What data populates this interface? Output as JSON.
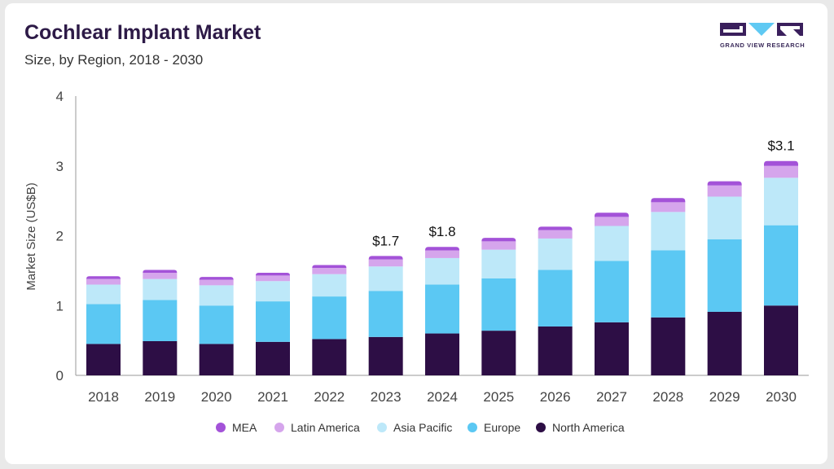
{
  "header": {
    "title": "Cochlear Implant Market",
    "subtitle": "Size, by Region, 2018 - 2030"
  },
  "logo": {
    "text": "GRAND VIEW RESEARCH",
    "color": "#3a1f5c",
    "accent": "#5fc9f3"
  },
  "chart_data": {
    "type": "bar",
    "stacked": true,
    "title": "Cochlear Implant Market",
    "subtitle": "Size, by Region, 2018 - 2030",
    "xlabel": "",
    "ylabel": "Market Size (US$B)",
    "ylim": [
      0,
      4
    ],
    "yticks": [
      "0",
      "1",
      "2",
      "3",
      "4"
    ],
    "grid": false,
    "legend_position": "bottom",
    "categories": [
      "2018",
      "2019",
      "2020",
      "2021",
      "2022",
      "2023",
      "2024",
      "2025",
      "2026",
      "2027",
      "2028",
      "2029",
      "2030"
    ],
    "series": [
      {
        "name": "North America",
        "color": "#2d0e45",
        "values": [
          0.45,
          0.49,
          0.45,
          0.48,
          0.52,
          0.55,
          0.6,
          0.64,
          0.7,
          0.76,
          0.83,
          0.91,
          1.0
        ]
      },
      {
        "name": "Europe",
        "color": "#5bc8f3",
        "values": [
          0.57,
          0.59,
          0.55,
          0.58,
          0.61,
          0.66,
          0.7,
          0.75,
          0.81,
          0.88,
          0.96,
          1.04,
          1.15
        ]
      },
      {
        "name": "Asia Pacific",
        "color": "#bde8f9",
        "values": [
          0.28,
          0.3,
          0.29,
          0.29,
          0.32,
          0.35,
          0.38,
          0.41,
          0.45,
          0.5,
          0.55,
          0.61,
          0.68
        ]
      },
      {
        "name": "Latin America",
        "color": "#d5a5ec",
        "values": [
          0.08,
          0.09,
          0.08,
          0.08,
          0.09,
          0.1,
          0.11,
          0.12,
          0.12,
          0.13,
          0.14,
          0.16,
          0.17
        ]
      },
      {
        "name": "MEA",
        "color": "#a352d8",
        "values": [
          0.04,
          0.04,
          0.04,
          0.04,
          0.04,
          0.05,
          0.05,
          0.05,
          0.05,
          0.06,
          0.06,
          0.06,
          0.07
        ]
      }
    ],
    "annotations": [
      {
        "category": "2023",
        "text": "$1.7"
      },
      {
        "category": "2024",
        "text": "$1.8"
      },
      {
        "category": "2030",
        "text": "$3.1"
      }
    ]
  }
}
